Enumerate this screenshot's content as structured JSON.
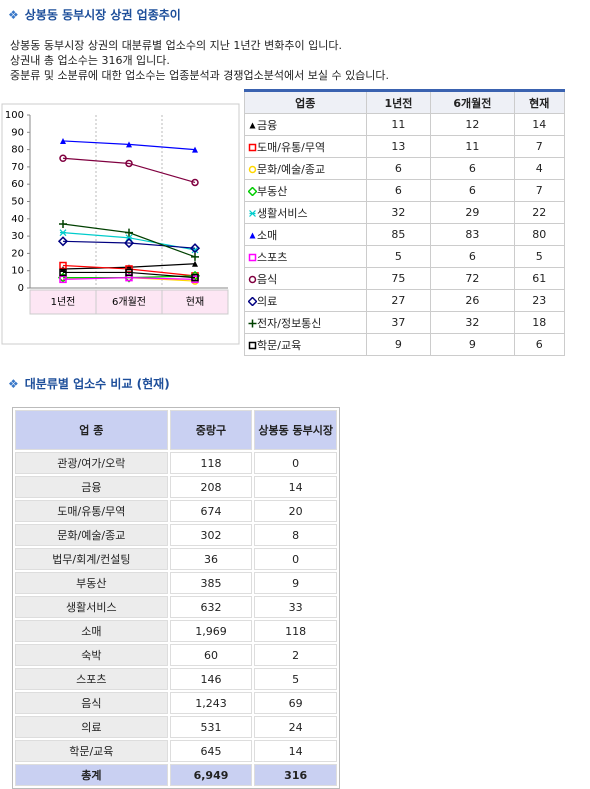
{
  "header": {
    "title": "상봉동 동부시장 상권 업종추이",
    "description": [
      "상봉동 동부시장 상권의 대분류별 업소수의 지난 1년간 변화추이 입니다.",
      "상권내 총 업소수는 316개 입니다.",
      "중분류 및 소분류에 대한 업소수는 업종분석과 경쟁업소분석에서 보실 수 있습니다."
    ]
  },
  "chart_data": {
    "type": "line",
    "categories": [
      "1년전",
      "6개월전",
      "현재"
    ],
    "ylim": [
      0,
      100
    ],
    "yticks": [
      0,
      10,
      20,
      30,
      40,
      50,
      60,
      70,
      80,
      90,
      100
    ],
    "grid": false,
    "series": [
      {
        "name": "금융",
        "color": "#000000",
        "marker": "triangle",
        "values": [
          11,
          12,
          14
        ]
      },
      {
        "name": "도매/유통/무역",
        "color": "#ff0000",
        "marker": "square",
        "values": [
          13,
          11,
          7
        ]
      },
      {
        "name": "문화/예술/종교",
        "color": "#ffd700",
        "marker": "circle",
        "values": [
          6,
          6,
          4
        ]
      },
      {
        "name": "부동산",
        "color": "#00cc00",
        "marker": "diamond",
        "values": [
          6,
          6,
          7
        ]
      },
      {
        "name": "생활서비스",
        "color": "#00cccc",
        "marker": "star",
        "values": [
          32,
          29,
          22
        ]
      },
      {
        "name": "소매",
        "color": "#0000ff",
        "marker": "triangle",
        "values": [
          85,
          83,
          80
        ]
      },
      {
        "name": "스포츠",
        "color": "#ff00ff",
        "marker": "square",
        "values": [
          5,
          6,
          5
        ]
      },
      {
        "name": "음식",
        "color": "#800040",
        "marker": "circle",
        "values": [
          75,
          72,
          61
        ]
      },
      {
        "name": "의료",
        "color": "#000080",
        "marker": "diamond",
        "values": [
          27,
          26,
          23
        ]
      },
      {
        "name": "전자/정보통신",
        "color": "#004000",
        "marker": "plus",
        "values": [
          37,
          32,
          18
        ]
      },
      {
        "name": "학문/교육",
        "color": "#000000",
        "marker": "square",
        "values": [
          9,
          9,
          6
        ]
      }
    ]
  },
  "trend_table": {
    "header": "업종"
  },
  "comparison": {
    "title": "대분류별 업소수 비교 (현재)",
    "columns": [
      "업 종",
      "중랑구",
      "상봉동 동부시장"
    ],
    "rows": [
      [
        "관광/여가/오락",
        "118",
        "0"
      ],
      [
        "금융",
        "208",
        "14"
      ],
      [
        "도매/유통/무역",
        "674",
        "20"
      ],
      [
        "문화/예술/종교",
        "302",
        "8"
      ],
      [
        "법무/회계/컨설팅",
        "36",
        "0"
      ],
      [
        "부동산",
        "385",
        "9"
      ],
      [
        "생활서비스",
        "632",
        "33"
      ],
      [
        "소매",
        "1,969",
        "118"
      ],
      [
        "숙박",
        "60",
        "2"
      ],
      [
        "스포츠",
        "146",
        "5"
      ],
      [
        "음식",
        "1,243",
        "69"
      ],
      [
        "의료",
        "531",
        "24"
      ],
      [
        "학문/교육",
        "645",
        "14"
      ]
    ],
    "total": [
      "총계",
      "6,949",
      "316"
    ]
  }
}
